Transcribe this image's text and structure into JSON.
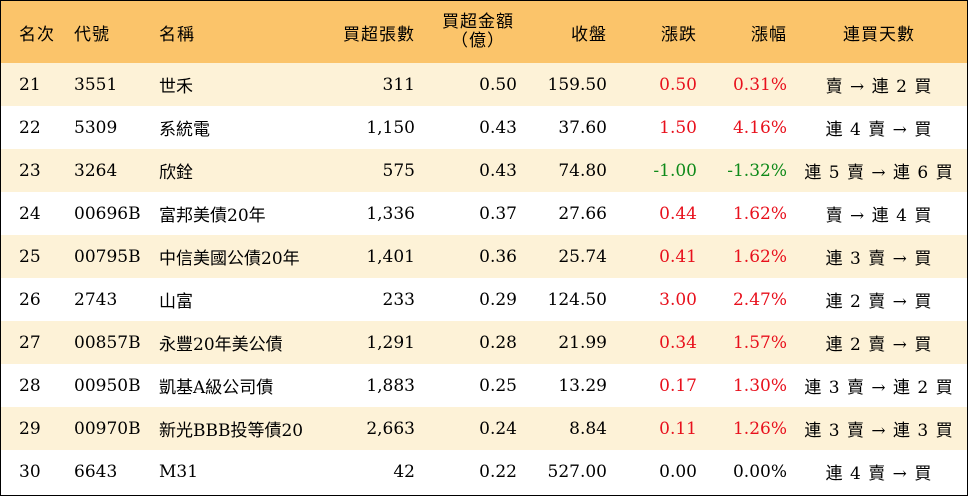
{
  "colors": {
    "header_bg": "#fbc46a",
    "stripe_bg": "#fdf2d7",
    "plain_bg": "#ffffff",
    "up": "#e8101c",
    "down": "#0f8a1a",
    "flat": "#000000"
  },
  "header": {
    "rank": "名次",
    "code": "代號",
    "name": "名稱",
    "qty": "買超張數",
    "amount_line1": "買超金額",
    "amount_line2": "（億）",
    "close": "收盤",
    "change": "漲跌",
    "pct": "漲幅",
    "streak": "連買天數"
  },
  "rows": [
    {
      "rank": "21",
      "code": "3551",
      "name": "世禾",
      "qty": "311",
      "amount": "0.50",
      "close": "159.50",
      "change": "0.50",
      "pct": "0.31%",
      "dir": "up",
      "streak": "賣 → 連 2 買"
    },
    {
      "rank": "22",
      "code": "5309",
      "name": "系統電",
      "qty": "1,150",
      "amount": "0.43",
      "close": "37.60",
      "change": "1.50",
      "pct": "4.16%",
      "dir": "up",
      "streak": "連 4 賣 → 買"
    },
    {
      "rank": "23",
      "code": "3264",
      "name": "欣銓",
      "qty": "575",
      "amount": "0.43",
      "close": "74.80",
      "change": "-1.00",
      "pct": "-1.32%",
      "dir": "down",
      "streak": "連 5 賣 → 連 6 買"
    },
    {
      "rank": "24",
      "code": "00696B",
      "name": "富邦美債20年",
      "qty": "1,336",
      "amount": "0.37",
      "close": "27.66",
      "change": "0.44",
      "pct": "1.62%",
      "dir": "up",
      "streak": "賣 → 連 4 買"
    },
    {
      "rank": "25",
      "code": "00795B",
      "name": "中信美國公債20年",
      "qty": "1,401",
      "amount": "0.36",
      "close": "25.74",
      "change": "0.41",
      "pct": "1.62%",
      "dir": "up",
      "streak": "連 3 賣 → 買"
    },
    {
      "rank": "26",
      "code": "2743",
      "name": "山富",
      "qty": "233",
      "amount": "0.29",
      "close": "124.50",
      "change": "3.00",
      "pct": "2.47%",
      "dir": "up",
      "streak": "連 2 賣 → 買"
    },
    {
      "rank": "27",
      "code": "00857B",
      "name": "永豐20年美公債",
      "qty": "1,291",
      "amount": "0.28",
      "close": "21.99",
      "change": "0.34",
      "pct": "1.57%",
      "dir": "up",
      "streak": "連 2 賣 → 買"
    },
    {
      "rank": "28",
      "code": "00950B",
      "name": "凱基A級公司債",
      "qty": "1,883",
      "amount": "0.25",
      "close": "13.29",
      "change": "0.17",
      "pct": "1.30%",
      "dir": "up",
      "streak": "連 3 賣 → 連 2 買"
    },
    {
      "rank": "29",
      "code": "00970B",
      "name": "新光BBB投等債20",
      "qty": "2,663",
      "amount": "0.24",
      "close": "8.84",
      "change": "0.11",
      "pct": "1.26%",
      "dir": "up",
      "streak": "連 3 賣 → 連 3 買"
    },
    {
      "rank": "30",
      "code": "6643",
      "name": "M31",
      "qty": "42",
      "amount": "0.22",
      "close": "527.00",
      "change": "0.00",
      "pct": "0.00%",
      "dir": "flat",
      "streak": "連 4 賣 → 買"
    }
  ]
}
